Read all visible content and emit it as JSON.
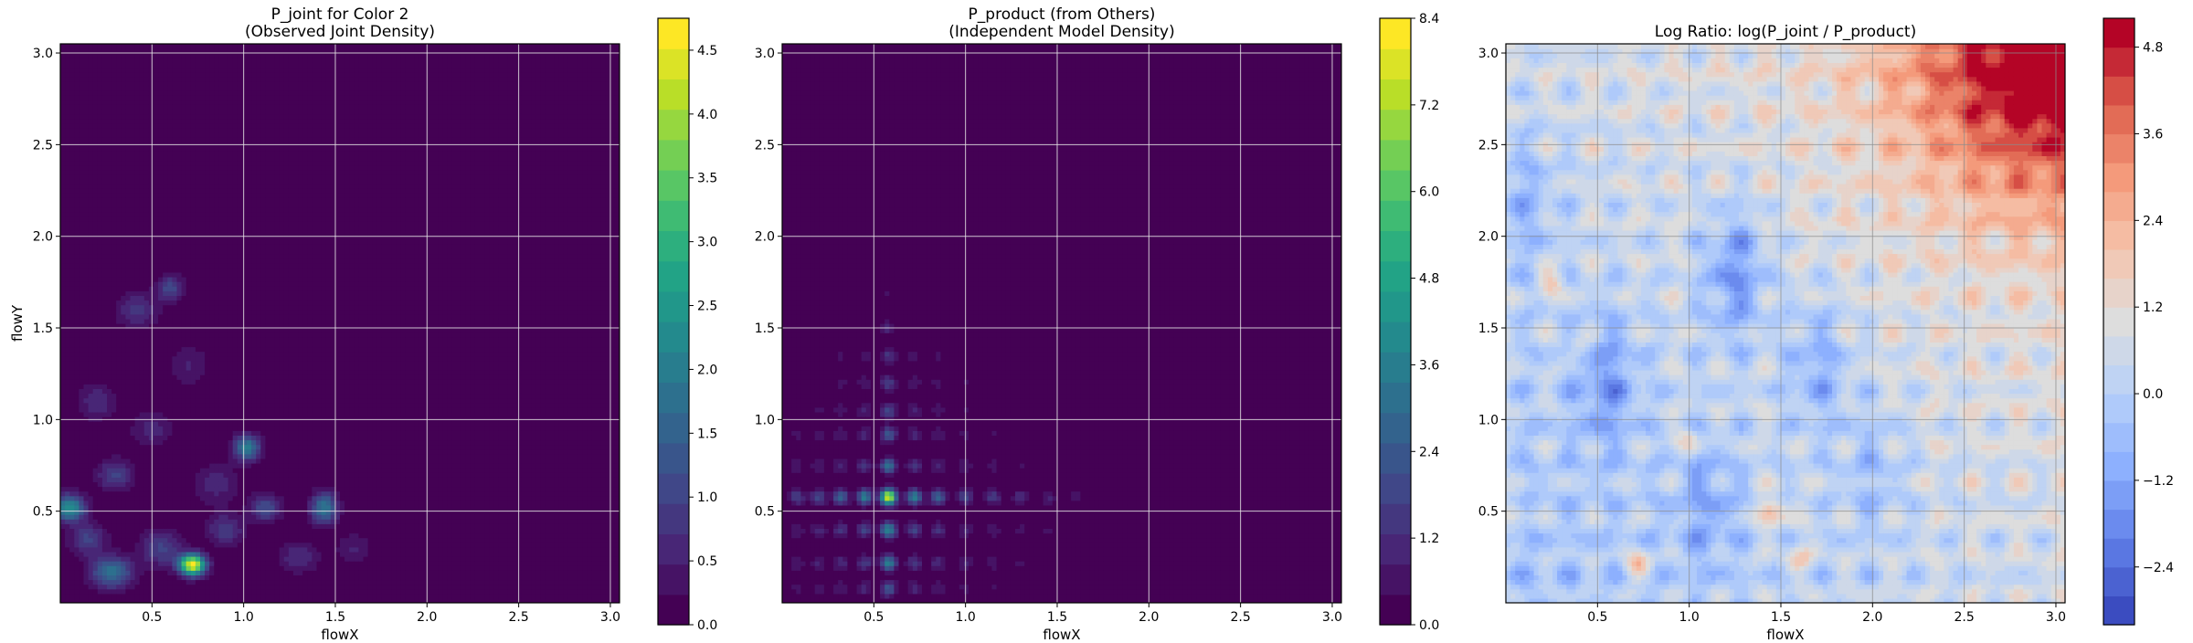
{
  "chart_data": [
    {
      "type": "heatmap",
      "title": "P_joint for Color 2\n(Observed Joint Density)",
      "xlabel": "flowX",
      "ylabel": "flowY",
      "xlim": [
        0.0,
        3.05
      ],
      "ylim": [
        0.0,
        3.05
      ],
      "xticks": [
        0.5,
        1.0,
        1.5,
        2.0,
        2.5,
        3.0
      ],
      "yticks": [
        0.5,
        1.0,
        1.5,
        2.0,
        2.5,
        3.0
      ],
      "grid": true,
      "colormap": "viridis",
      "colorbar": {
        "min": 0.0,
        "max": 4.75,
        "ticks": [
          0.0,
          0.5,
          1.0,
          1.5,
          2.0,
          2.5,
          3.0,
          3.5,
          4.0,
          4.5
        ],
        "levels": 20
      },
      "blobs": [
        {
          "x": 0.72,
          "y": 0.21,
          "sx": 0.05,
          "sy": 0.04,
          "v": 4.6
        },
        {
          "x": 0.05,
          "y": 0.52,
          "sx": 0.06,
          "sy": 0.05,
          "v": 2.4
        },
        {
          "x": 0.28,
          "y": 0.17,
          "sx": 0.08,
          "sy": 0.06,
          "v": 1.8
        },
        {
          "x": 1.44,
          "y": 0.52,
          "sx": 0.05,
          "sy": 0.06,
          "v": 1.9
        },
        {
          "x": 1.02,
          "y": 0.85,
          "sx": 0.05,
          "sy": 0.05,
          "v": 2.0
        },
        {
          "x": 1.12,
          "y": 0.52,
          "sx": 0.06,
          "sy": 0.05,
          "v": 1.2
        },
        {
          "x": 0.6,
          "y": 1.72,
          "sx": 0.05,
          "sy": 0.05,
          "v": 1.1
        },
        {
          "x": 0.3,
          "y": 0.7,
          "sx": 0.07,
          "sy": 0.06,
          "v": 1.0
        },
        {
          "x": 0.42,
          "y": 1.6,
          "sx": 0.08,
          "sy": 0.07,
          "v": 0.8
        },
        {
          "x": 0.55,
          "y": 0.3,
          "sx": 0.08,
          "sy": 0.07,
          "v": 1.0
        },
        {
          "x": 0.9,
          "y": 0.4,
          "sx": 0.07,
          "sy": 0.06,
          "v": 0.9
        },
        {
          "x": 1.3,
          "y": 0.25,
          "sx": 0.08,
          "sy": 0.06,
          "v": 0.7
        },
        {
          "x": 0.2,
          "y": 1.1,
          "sx": 0.07,
          "sy": 0.07,
          "v": 0.7
        },
        {
          "x": 0.7,
          "y": 1.3,
          "sx": 0.08,
          "sy": 0.08,
          "v": 0.5
        },
        {
          "x": 0.85,
          "y": 0.65,
          "sx": 0.09,
          "sy": 0.08,
          "v": 0.6
        },
        {
          "x": 0.15,
          "y": 0.35,
          "sx": 0.07,
          "sy": 0.06,
          "v": 1.0
        },
        {
          "x": 1.6,
          "y": 0.3,
          "sx": 0.07,
          "sy": 0.06,
          "v": 0.5
        },
        {
          "x": 0.5,
          "y": 0.95,
          "sx": 0.08,
          "sy": 0.07,
          "v": 0.6
        }
      ]
    },
    {
      "type": "heatmap",
      "title": "P_product (from Others)\n(Independent Model Density)",
      "xlabel": "flowX",
      "ylabel": "",
      "xlim": [
        0.0,
        3.05
      ],
      "ylim": [
        0.0,
        3.05
      ],
      "xticks": [
        0.5,
        1.0,
        1.5,
        2.0,
        2.5,
        3.0
      ],
      "yticks": [
        0.5,
        1.0,
        1.5,
        2.0,
        2.5,
        3.0
      ],
      "grid": true,
      "colormap": "viridis",
      "colorbar": {
        "min": 0.0,
        "max": 8.4,
        "ticks": [
          0.0,
          1.2,
          2.4,
          3.6,
          4.8,
          6.0,
          7.2,
          8.4
        ],
        "levels": 20
      },
      "peak": {
        "x": 0.58,
        "y": 0.58,
        "v": 8.0
      },
      "x_modes": [
        {
          "x": 0.58,
          "w": 1.0
        },
        {
          "x": 0.45,
          "w": 0.45
        },
        {
          "x": 0.72,
          "w": 0.45
        },
        {
          "x": 0.32,
          "w": 0.35
        },
        {
          "x": 0.85,
          "w": 0.35
        },
        {
          "x": 0.2,
          "w": 0.25
        },
        {
          "x": 1.0,
          "w": 0.25
        },
        {
          "x": 0.08,
          "w": 0.22
        },
        {
          "x": 1.15,
          "w": 0.2
        },
        {
          "x": 1.3,
          "w": 0.15
        },
        {
          "x": 1.45,
          "w": 0.12
        },
        {
          "x": 1.6,
          "w": 0.08
        }
      ],
      "y_modes": [
        {
          "y": 0.58,
          "w": 1.0
        },
        {
          "y": 0.4,
          "w": 0.5
        },
        {
          "y": 0.22,
          "w": 0.45
        },
        {
          "y": 0.75,
          "w": 0.4
        },
        {
          "y": 0.08,
          "w": 0.3
        },
        {
          "y": 0.92,
          "w": 0.3
        },
        {
          "y": 1.05,
          "w": 0.25
        },
        {
          "y": 1.2,
          "w": 0.22
        },
        {
          "y": 1.35,
          "w": 0.18
        },
        {
          "y": 1.5,
          "w": 0.12
        },
        {
          "y": 1.7,
          "w": 0.06
        }
      ]
    },
    {
      "type": "heatmap",
      "title": "Log Ratio: log(P_joint / P_product)",
      "xlabel": "flowX",
      "ylabel": "",
      "xlim": [
        0.0,
        3.05
      ],
      "ylim": [
        0.0,
        3.05
      ],
      "xticks": [
        0.5,
        1.0,
        1.5,
        2.0,
        2.5,
        3.0
      ],
      "yticks": [
        0.5,
        1.0,
        1.5,
        2.0,
        2.5,
        3.0
      ],
      "grid": true,
      "colormap": "coolwarm",
      "colorbar": {
        "min": -3.2,
        "max": 5.2,
        "ticks": [
          -2.4,
          -1.2,
          0.0,
          1.2,
          2.4,
          3.6,
          4.8
        ],
        "levels": 21
      },
      "trend": {
        "base": -0.4,
        "gain": 0.75,
        "corner": 4.6
      },
      "hotspots": [
        {
          "x": 1.45,
          "y": 0.5,
          "v": 2.2
        },
        {
          "x": 0.72,
          "y": 0.21,
          "v": 1.9
        },
        {
          "x": 0.25,
          "y": 1.75,
          "v": 1.6
        },
        {
          "x": 1.0,
          "y": 0.9,
          "v": 1.3
        },
        {
          "x": 0.05,
          "y": 0.5,
          "v": 1.2
        },
        {
          "x": 1.6,
          "y": 0.25,
          "v": 1.2
        },
        {
          "x": 0.4,
          "y": 1.4,
          "v": 1.0
        }
      ],
      "coldspots": [
        {
          "x": 1.25,
          "y": 1.8,
          "v": -2.0
        },
        {
          "x": 0.55,
          "y": 1.2,
          "v": -1.6
        },
        {
          "x": 1.7,
          "y": 1.3,
          "v": -1.4
        },
        {
          "x": 1.1,
          "y": 0.55,
          "v": -1.2
        },
        {
          "x": 0.1,
          "y": 2.2,
          "v": -1.0
        },
        {
          "x": 2.0,
          "y": 0.75,
          "v": -0.9
        }
      ]
    }
  ]
}
